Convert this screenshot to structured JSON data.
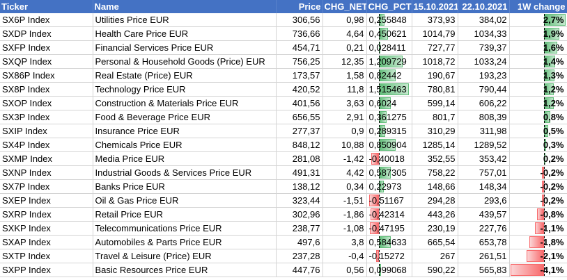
{
  "headers": [
    "Ticker",
    "Name",
    "Price",
    "CHG_NET",
    "CHG_PCT",
    "15.10.2021",
    "22.10.2021",
    "1W change"
  ],
  "rows": [
    {
      "ticker": "SX6P Index",
      "name": "Utilities Price EUR",
      "price": "306,56",
      "chg_net": "0,98",
      "chg_pct": "0,255848",
      "d1": "373,93",
      "d2": "384,02",
      "w": "2,7%",
      "pct": 0.255848,
      "wv": 2.7
    },
    {
      "ticker": "SXDP Index",
      "name": "Health Care Price EUR",
      "price": "736,66",
      "chg_net": "4,64",
      "chg_pct": "0,450621",
      "d1": "1014,79",
      "d2": "1034,33",
      "w": "1,9%",
      "pct": 0.450621,
      "wv": 1.9
    },
    {
      "ticker": "SXFP Index",
      "name": "Financial Services Price EUR",
      "price": "454,71",
      "chg_net": "0,21",
      "chg_pct": "0,028411",
      "d1": "727,77",
      "d2": "739,37",
      "w": "1,6%",
      "pct": 0.028411,
      "wv": 1.6
    },
    {
      "ticker": "SXQP Index",
      "name": "Personal & Household Goods (Price) EUR",
      "price": "756,25",
      "chg_net": "12,35",
      "chg_pct": "1,209729",
      "d1": "1018,72",
      "d2": "1033,24",
      "w": "1,4%",
      "pct": 1.209729,
      "wv": 1.4
    },
    {
      "ticker": "SX86P Index",
      "name": "Real Estate (Price) EUR",
      "price": "173,57",
      "chg_net": "1,58",
      "chg_pct": "0,82442",
      "d1": "190,67",
      "d2": "193,23",
      "w": "1,3%",
      "pct": 0.82442,
      "wv": 1.3
    },
    {
      "ticker": "SX8P Index",
      "name": "Technology Price EUR",
      "price": "420,52",
      "chg_net": "11,8",
      "chg_pct": "1,515463",
      "d1": "780,81",
      "d2": "790,44",
      "w": "1,2%",
      "pct": 1.515463,
      "wv": 1.2
    },
    {
      "ticker": "SXOP Index",
      "name": "Construction & Materials Price EUR",
      "price": "401,56",
      "chg_net": "3,63",
      "chg_pct": "0,6024",
      "d1": "599,14",
      "d2": "606,22",
      "w": "1,2%",
      "pct": 0.6024,
      "wv": 1.2
    },
    {
      "ticker": "SX3P Index",
      "name": "Food & Beverage Price EUR",
      "price": "656,55",
      "chg_net": "2,91",
      "chg_pct": "0,361275",
      "d1": "801,7",
      "d2": "808,39",
      "w": "0,8%",
      "pct": 0.361275,
      "wv": 0.8
    },
    {
      "ticker": "SXIP Index",
      "name": "Insurance Price EUR",
      "price": "277,37",
      "chg_net": "0,9",
      "chg_pct": "0,289315",
      "d1": "310,29",
      "d2": "311,98",
      "w": "0,5%",
      "pct": 0.289315,
      "wv": 0.5
    },
    {
      "ticker": "SX4P Index",
      "name": "Chemicals Price EUR",
      "price": "848,12",
      "chg_net": "10,88",
      "chg_pct": "0,850904",
      "d1": "1285,14",
      "d2": "1289,52",
      "w": "0,3%",
      "pct": 0.850904,
      "wv": 0.3
    },
    {
      "ticker": "SXMP Index",
      "name": "Media Price EUR",
      "price": "281,08",
      "chg_net": "-1,42",
      "chg_pct": "-0,40018",
      "d1": "352,55",
      "d2": "353,42",
      "w": "0,2%",
      "pct": -0.40018,
      "wv": 0.2
    },
    {
      "ticker": "SXNP Index",
      "name": "Industrial Goods & Services Price EUR",
      "price": "491,31",
      "chg_net": "4,42",
      "chg_pct": "0,587305",
      "d1": "758,22",
      "d2": "757,01",
      "w": "-0,2%",
      "pct": 0.587305,
      "wv": -0.2
    },
    {
      "ticker": "SX7P Index",
      "name": "Banks Price EUR",
      "price": "138,12",
      "chg_net": "0,34",
      "chg_pct": "0,22973",
      "d1": "148,66",
      "d2": "148,34",
      "w": "-0,2%",
      "pct": 0.22973,
      "wv": -0.2
    },
    {
      "ticker": "SXEP Index",
      "name": "Oil & Gas Price EUR",
      "price": "323,44",
      "chg_net": "-1,51",
      "chg_pct": "-0,51167",
      "d1": "294,28",
      "d2": "293,6",
      "w": "-0,2%",
      "pct": -0.51167,
      "wv": -0.2
    },
    {
      "ticker": "SXRP Index",
      "name": "Retail Price EUR",
      "price": "302,96",
      "chg_net": "-1,86",
      "chg_pct": "-0,42314",
      "d1": "443,26",
      "d2": "439,57",
      "w": "-0,8%",
      "pct": -0.42314,
      "wv": -0.8
    },
    {
      "ticker": "SXKP Index",
      "name": "Telecommunications Price EUR",
      "price": "238,77",
      "chg_net": "-1,08",
      "chg_pct": "-0,47195",
      "d1": "230,19",
      "d2": "227,76",
      "w": "-1,1%",
      "pct": -0.47195,
      "wv": -1.1
    },
    {
      "ticker": "SXAP Index",
      "name": "Automobiles & Parts Price EUR",
      "price": "497,6",
      "chg_net": "3,8",
      "chg_pct": "0,584633",
      "d1": "665,54",
      "d2": "653,78",
      "w": "-1,8%",
      "pct": 0.584633,
      "wv": -1.8
    },
    {
      "ticker": "SXTP Index",
      "name": "Travel & Leisure (Price) EUR",
      "price": "237,28",
      "chg_net": "-0,4",
      "chg_pct": "-0,15272",
      "d1": "267",
      "d2": "261,51",
      "w": "-2,1%",
      "pct": -0.15272,
      "wv": -2.1
    },
    {
      "ticker": "SXPP Index",
      "name": "Basic Resources Price EUR",
      "price": "447,76",
      "chg_net": "0,56",
      "chg_pct": "0,099068",
      "d1": "590,22",
      "d2": "565,83",
      "w": "-4,1%",
      "pct": 0.099068,
      "wv": -4.1
    }
  ],
  "colors": {
    "header_bg": "#4472c4",
    "bar_positive": "#63be7b",
    "bar_negative": "#f8696b"
  }
}
